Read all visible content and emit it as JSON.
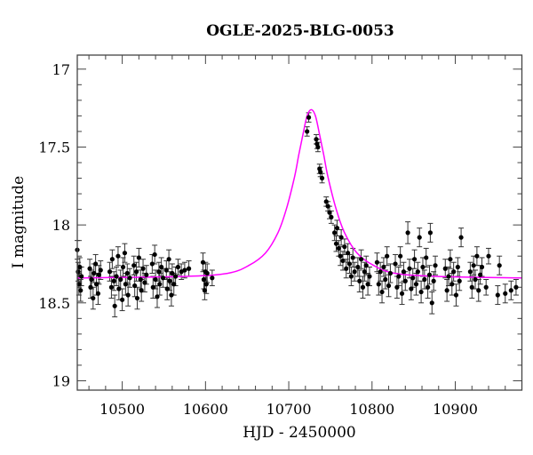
{
  "chart_data": {
    "type": "scatter",
    "title": "OGLE-2025-BLG-0053",
    "xlabel": "HJD - 2450000",
    "ylabel": "I magnitude",
    "xlim": [
      10446,
      10980
    ],
    "ylim": [
      19.06,
      16.91
    ],
    "y_inverted": true,
    "grid": false,
    "x_ticks": [
      "10500",
      "10600",
      "10700",
      "10800",
      "10900"
    ],
    "x_tick_values": [
      10500,
      10600,
      10700,
      10800,
      10900
    ],
    "x_minor_step": 20,
    "y_ticks": [
      "17",
      "17.5",
      "18",
      "18.5",
      "19"
    ],
    "y_tick_values": [
      17,
      17.5,
      18,
      18.5,
      19
    ],
    "y_minor_step": 0.1,
    "colors": {
      "data": "#000000",
      "model": "#ff00ff",
      "errorbar": "#333333"
    },
    "series": [
      {
        "kind": "points-with-errors",
        "columns": [
          "hjd",
          "mag",
          "err"
        ],
        "points": [
          [
            10446,
            18.16,
            0.06
          ],
          [
            10447,
            18.3,
            0.06
          ],
          [
            10448,
            18.38,
            0.07
          ],
          [
            10449,
            18.27,
            0.06
          ],
          [
            10450,
            18.42,
            0.07
          ],
          [
            10451,
            18.33,
            0.06
          ],
          [
            10461,
            18.28,
            0.06
          ],
          [
            10462,
            18.4,
            0.07
          ],
          [
            10463,
            18.35,
            0.06
          ],
          [
            10465,
            18.47,
            0.07
          ],
          [
            10466,
            18.31,
            0.06
          ],
          [
            10468,
            18.25,
            0.06
          ],
          [
            10469,
            18.38,
            0.07
          ],
          [
            10471,
            18.44,
            0.07
          ],
          [
            10472,
            18.32,
            0.06
          ],
          [
            10474,
            18.29,
            0.06
          ],
          [
            10485,
            18.3,
            0.06
          ],
          [
            10487,
            18.4,
            0.07
          ],
          [
            10488,
            18.22,
            0.06
          ],
          [
            10490,
            18.36,
            0.06
          ],
          [
            10491,
            18.52,
            0.07
          ],
          [
            10493,
            18.33,
            0.06
          ],
          [
            10495,
            18.2,
            0.06
          ],
          [
            10496,
            18.41,
            0.07
          ],
          [
            10498,
            18.35,
            0.06
          ],
          [
            10500,
            18.48,
            0.07
          ],
          [
            10501,
            18.27,
            0.06
          ],
          [
            10503,
            18.18,
            0.06
          ],
          [
            10504,
            18.38,
            0.07
          ],
          [
            10506,
            18.31,
            0.06
          ],
          [
            10507,
            18.45,
            0.07
          ],
          [
            10509,
            18.34,
            0.06
          ],
          [
            10514,
            18.26,
            0.06
          ],
          [
            10515,
            18.39,
            0.07
          ],
          [
            10517,
            18.3,
            0.06
          ],
          [
            10518,
            18.47,
            0.07
          ],
          [
            10520,
            18.21,
            0.06
          ],
          [
            10522,
            18.35,
            0.06
          ],
          [
            10523,
            18.42,
            0.07
          ],
          [
            10525,
            18.28,
            0.06
          ],
          [
            10527,
            18.37,
            0.06
          ],
          [
            10529,
            18.32,
            0.06
          ],
          [
            10536,
            18.25,
            0.06
          ],
          [
            10537,
            18.4,
            0.07
          ],
          [
            10539,
            18.19,
            0.06
          ],
          [
            10540,
            18.35,
            0.06
          ],
          [
            10542,
            18.46,
            0.07
          ],
          [
            10544,
            18.3,
            0.06
          ],
          [
            10545,
            18.38,
            0.07
          ],
          [
            10547,
            18.27,
            0.06
          ],
          [
            10549,
            18.34,
            0.06
          ],
          [
            10553,
            18.29,
            0.06
          ],
          [
            10554,
            18.41,
            0.07
          ],
          [
            10556,
            18.22,
            0.06
          ],
          [
            10557,
            18.36,
            0.06
          ],
          [
            10559,
            18.45,
            0.07
          ],
          [
            10560,
            18.31,
            0.06
          ],
          [
            10562,
            18.38,
            0.07
          ],
          [
            10564,
            18.33,
            0.06
          ],
          [
            10567,
            18.27,
            0.05
          ],
          [
            10571,
            18.3,
            0.05
          ],
          [
            10575,
            18.29,
            0.05
          ],
          [
            10580,
            18.28,
            0.05
          ],
          [
            10597,
            18.24,
            0.06
          ],
          [
            10598,
            18.35,
            0.06
          ],
          [
            10599,
            18.42,
            0.06
          ],
          [
            10600,
            18.3,
            0.06
          ],
          [
            10601,
            18.38,
            0.06
          ],
          [
            10602,
            18.31,
            0.06
          ],
          [
            10608,
            18.34,
            0.05
          ],
          [
            10722,
            17.4,
            0.03
          ],
          [
            10724,
            17.31,
            0.03
          ],
          [
            10733,
            17.45,
            0.03
          ],
          [
            10734,
            17.48,
            0.03
          ],
          [
            10735,
            17.5,
            0.03
          ],
          [
            10737,
            17.64,
            0.03
          ],
          [
            10738,
            17.66,
            0.03
          ],
          [
            10740,
            17.7,
            0.03
          ],
          [
            10745,
            17.85,
            0.03
          ],
          [
            10747,
            17.88,
            0.03
          ],
          [
            10749,
            17.92,
            0.04
          ],
          [
            10751,
            17.95,
            0.04
          ],
          [
            10755,
            18.05,
            0.05
          ],
          [
            10757,
            18.12,
            0.05
          ],
          [
            10758,
            18.02,
            0.05
          ],
          [
            10760,
            18.15,
            0.05
          ],
          [
            10762,
            18.2,
            0.06
          ],
          [
            10763,
            18.08,
            0.05
          ],
          [
            10765,
            18.23,
            0.06
          ],
          [
            10767,
            18.14,
            0.05
          ],
          [
            10769,
            18.28,
            0.06
          ],
          [
            10771,
            18.18,
            0.06
          ],
          [
            10773,
            18.25,
            0.06
          ],
          [
            10775,
            18.33,
            0.06
          ],
          [
            10777,
            18.21,
            0.06
          ],
          [
            10779,
            18.3,
            0.06
          ],
          [
            10783,
            18.27,
            0.06
          ],
          [
            10785,
            18.36,
            0.07
          ],
          [
            10787,
            18.22,
            0.06
          ],
          [
            10789,
            18.4,
            0.07
          ],
          [
            10791,
            18.3,
            0.06
          ],
          [
            10793,
            18.26,
            0.06
          ],
          [
            10795,
            18.38,
            0.07
          ],
          [
            10797,
            18.33,
            0.06
          ],
          [
            10806,
            18.24,
            0.06
          ],
          [
            10808,
            18.38,
            0.07
          ],
          [
            10810,
            18.3,
            0.06
          ],
          [
            10812,
            18.43,
            0.07
          ],
          [
            10814,
            18.27,
            0.06
          ],
          [
            10816,
            18.35,
            0.06
          ],
          [
            10818,
            18.2,
            0.06
          ],
          [
            10820,
            18.39,
            0.07
          ],
          [
            10822,
            18.31,
            0.06
          ],
          [
            10828,
            18.25,
            0.06
          ],
          [
            10830,
            18.4,
            0.07
          ],
          [
            10832,
            18.33,
            0.06
          ],
          [
            10834,
            18.2,
            0.06
          ],
          [
            10836,
            18.44,
            0.07
          ],
          [
            10838,
            18.3,
            0.06
          ],
          [
            10840,
            18.36,
            0.06
          ],
          [
            10843,
            18.05,
            0.07
          ],
          [
            10845,
            18.28,
            0.06
          ],
          [
            10847,
            18.41,
            0.07
          ],
          [
            10849,
            18.34,
            0.06
          ],
          [
            10851,
            18.22,
            0.06
          ],
          [
            10853,
            18.38,
            0.07
          ],
          [
            10855,
            18.3,
            0.06
          ],
          [
            10857,
            18.08,
            0.06
          ],
          [
            10859,
            18.43,
            0.07
          ],
          [
            10861,
            18.27,
            0.06
          ],
          [
            10863,
            18.35,
            0.06
          ],
          [
            10865,
            18.21,
            0.06
          ],
          [
            10867,
            18.4,
            0.07
          ],
          [
            10869,
            18.32,
            0.06
          ],
          [
            10870,
            18.05,
            0.06
          ],
          [
            10872,
            18.5,
            0.07
          ],
          [
            10874,
            18.36,
            0.06
          ],
          [
            10876,
            18.26,
            0.06
          ],
          [
            10888,
            18.28,
            0.06
          ],
          [
            10890,
            18.42,
            0.07
          ],
          [
            10892,
            18.33,
            0.06
          ],
          [
            10894,
            18.22,
            0.06
          ],
          [
            10896,
            18.38,
            0.07
          ],
          [
            10898,
            18.3,
            0.06
          ],
          [
            10901,
            18.45,
            0.07
          ],
          [
            10903,
            18.27,
            0.06
          ],
          [
            10905,
            18.36,
            0.06
          ],
          [
            10907,
            18.08,
            0.06
          ],
          [
            10918,
            18.3,
            0.06
          ],
          [
            10920,
            18.4,
            0.07
          ],
          [
            10922,
            18.26,
            0.06
          ],
          [
            10924,
            18.35,
            0.06
          ],
          [
            10926,
            18.2,
            0.06
          ],
          [
            10928,
            18.42,
            0.07
          ],
          [
            10930,
            18.32,
            0.06
          ],
          [
            10932,
            18.27,
            0.06
          ],
          [
            10937,
            18.4,
            0.05
          ],
          [
            10940,
            18.2,
            0.05
          ],
          [
            10951,
            18.45,
            0.06
          ],
          [
            10953,
            18.26,
            0.06
          ],
          [
            10960,
            18.44,
            0.06
          ],
          [
            10967,
            18.42,
            0.06
          ],
          [
            10973,
            18.4,
            0.05
          ]
        ]
      },
      {
        "kind": "model-curve",
        "columns": [
          "hjd",
          "mag"
        ],
        "points": [
          [
            10446,
            18.34
          ],
          [
            10577,
            18.33
          ],
          [
            10627,
            18.31
          ],
          [
            10652,
            18.26
          ],
          [
            10672,
            18.18
          ],
          [
            10687,
            18.05
          ],
          [
            10697,
            17.9
          ],
          [
            10707,
            17.69
          ],
          [
            10712,
            17.55
          ],
          [
            10717,
            17.42
          ],
          [
            10722,
            17.3
          ],
          [
            10727,
            17.26
          ],
          [
            10732,
            17.3
          ],
          [
            10737,
            17.42
          ],
          [
            10742,
            17.55
          ],
          [
            10747,
            17.69
          ],
          [
            10757,
            17.9
          ],
          [
            10767,
            18.05
          ],
          [
            10782,
            18.18
          ],
          [
            10802,
            18.26
          ],
          [
            10827,
            18.31
          ],
          [
            10877,
            18.33
          ],
          [
            10980,
            18.34
          ]
        ]
      }
    ]
  }
}
